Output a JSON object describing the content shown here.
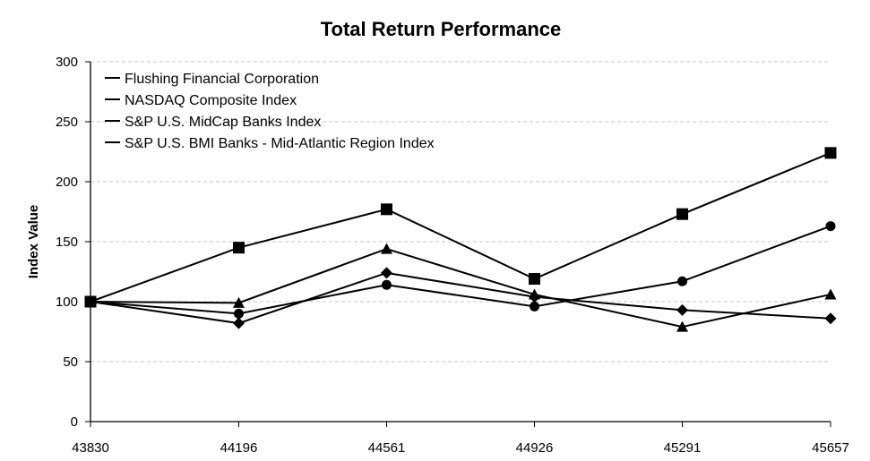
{
  "chart_data": {
    "type": "line",
    "title": "Total Return Performance",
    "xlabel": "",
    "ylabel": "Index Value",
    "x": [
      43830,
      44196,
      44561,
      44926,
      45291,
      45657
    ],
    "x_tick_labels": [
      "43830",
      "44196",
      "44561",
      "44926",
      "45291",
      "45657"
    ],
    "ylim": [
      0,
      300
    ],
    "y_ticks": [
      0,
      50,
      100,
      150,
      200,
      250,
      300
    ],
    "grid": true,
    "legend_position": "top-left",
    "series": [
      {
        "name": "Flushing Financial Corporation",
        "marker": "diamond",
        "values": [
          100,
          82,
          124,
          104,
          93,
          86
        ]
      },
      {
        "name": "NASDAQ Composite Index",
        "marker": "square",
        "values": [
          100,
          145,
          177,
          119,
          173,
          224
        ]
      },
      {
        "name": "S&P U.S. MidCap Banks Index",
        "marker": "triangle",
        "values": [
          100,
          99,
          144,
          106,
          79,
          106
        ]
      },
      {
        "name": "S&P U.S. BMI Banks - Mid-Atlantic Region Index",
        "marker": "circle",
        "values": [
          100,
          90,
          114,
          96,
          117,
          163
        ]
      }
    ],
    "colors": {
      "line": "#000000",
      "grid": "#c8c8c8"
    }
  }
}
